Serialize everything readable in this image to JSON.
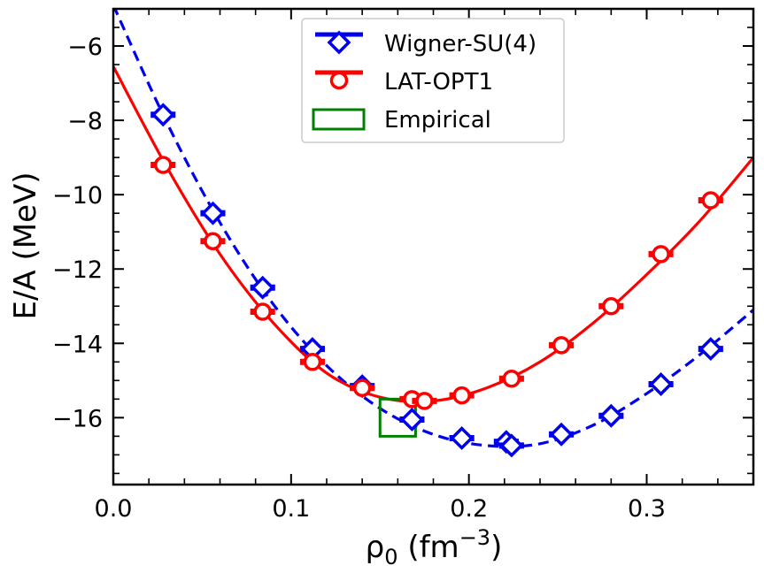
{
  "chart_data": {
    "type": "scatter",
    "title": "",
    "xlabel": "ρ₀ (fm⁻³)",
    "xlabel_parts": {
      "base": "ρ",
      "sub": "0",
      "unit_open": " (fm",
      "sup": "−3",
      "unit_close": ")"
    },
    "ylabel": "E/A (MeV)",
    "xlim": [
      0.0,
      0.36
    ],
    "ylim": [
      -17.8,
      -5.0
    ],
    "xticks": [
      0.0,
      0.1,
      0.2,
      0.3
    ],
    "xtick_labels": [
      "0.0",
      "0.1",
      "0.2",
      "0.3"
    ],
    "yticks": [
      -16,
      -14,
      -12,
      -10,
      -8,
      -6
    ],
    "ytick_labels": [
      "−16",
      "−14",
      "−12",
      "−10",
      "−8",
      "−6"
    ],
    "grid": false,
    "legend_position": "top-center",
    "series": [
      {
        "name": "Wigner-SU(4)",
        "marker": "diamond",
        "color": "#0000ee",
        "line_style": "dashed",
        "x": [
          0.028,
          0.056,
          0.084,
          0.112,
          0.14,
          0.168,
          0.196,
          0.221,
          0.224,
          0.252,
          0.28,
          0.308,
          0.336
        ],
        "y": [
          -7.85,
          -10.5,
          -12.5,
          -14.15,
          -15.15,
          -16.05,
          -16.55,
          -16.65,
          -16.75,
          -16.45,
          -15.95,
          -15.1,
          -14.15
        ],
        "xerr": [
          0.007,
          0.007,
          0.007,
          0.007,
          0.007,
          0.007,
          0.007,
          0.007,
          0.007,
          0.007,
          0.007,
          0.007,
          0.007
        ],
        "fit": {
          "x": [
            0.0,
            0.03,
            0.06,
            0.09,
            0.12,
            0.15,
            0.18,
            0.21,
            0.24,
            0.27,
            0.3,
            0.33,
            0.36
          ],
          "y": [
            -4.9,
            -8.05,
            -10.75,
            -12.95,
            -14.6,
            -15.75,
            -16.45,
            -16.75,
            -16.7,
            -16.2,
            -15.35,
            -14.3,
            -13.1
          ]
        }
      },
      {
        "name": "LAT-OPT1",
        "marker": "circle",
        "color": "#ff0000",
        "line_style": "solid",
        "x": [
          0.028,
          0.056,
          0.084,
          0.112,
          0.14,
          0.168,
          0.175,
          0.196,
          0.224,
          0.252,
          0.28,
          0.308,
          0.336
        ],
        "y": [
          -9.2,
          -11.25,
          -13.15,
          -14.5,
          -15.2,
          -15.5,
          -15.55,
          -15.4,
          -14.95,
          -14.05,
          -13.0,
          -11.6,
          -10.15
        ],
        "xerr": [
          0.007,
          0.007,
          0.007,
          0.007,
          0.007,
          0.007,
          0.007,
          0.007,
          0.007,
          0.007,
          0.007,
          0.007,
          0.007
        ],
        "fit": {
          "x": [
            0.0,
            0.03,
            0.06,
            0.09,
            0.12,
            0.15,
            0.18,
            0.21,
            0.24,
            0.27,
            0.3,
            0.33,
            0.36
          ],
          "y": [
            -6.55,
            -9.25,
            -11.6,
            -13.45,
            -14.8,
            -15.45,
            -15.55,
            -15.2,
            -14.5,
            -13.45,
            -12.15,
            -10.7,
            -9.0
          ]
        }
      }
    ],
    "empirical_box": {
      "name": "Empirical",
      "color": "#008000",
      "x_range": [
        0.15,
        0.17
      ],
      "y_range": [
        -16.5,
        -15.5
      ]
    }
  }
}
